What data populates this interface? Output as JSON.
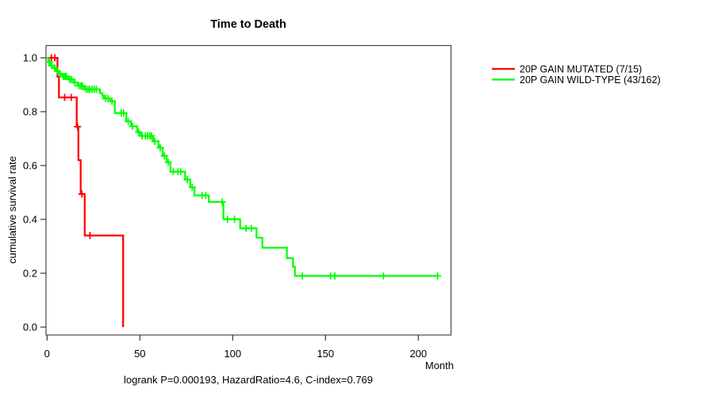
{
  "chart": {
    "title": "Time to Death",
    "x_axis_label": "Month",
    "y_axis_label": "cumulative survival rate",
    "footer": "logrank P=0.000193, HazardRatio=4.6, C-index=0.769"
  },
  "legend": {
    "items": [
      {
        "label": "20P GAIN MUTATED (7/15)",
        "color": "#ff0000"
      },
      {
        "label": "20P GAIN WILD-TYPE (43/162)",
        "color": "#00ff00"
      }
    ]
  },
  "chart_data": {
    "type": "line",
    "subtype": "kaplan-meier-step",
    "title": "Time to Death",
    "xlabel": "Month",
    "ylabel": "cumulative survival rate",
    "xlim": [
      0,
      217
    ],
    "ylim": [
      0,
      1
    ],
    "grid": false,
    "legend_position": "right-outside",
    "x_ticks": {
      "values": [
        0,
        50,
        100,
        150,
        200
      ],
      "labels": [
        "0",
        "50",
        "100",
        "150",
        "200"
      ]
    },
    "y_ticks": {
      "values": [
        0.0,
        0.2,
        0.4,
        0.6,
        0.8,
        1.0
      ],
      "labels": [
        "0.0",
        "0.2",
        "0.4",
        "0.6",
        "0.8",
        "1.0"
      ]
    },
    "annotation": "logrank P=0.000193, HazardRatio=4.6, C-index=0.769",
    "series": [
      {
        "name": "20P GAIN MUTATED (7/15)",
        "color": "#ff0000",
        "events": [
          [
            0,
            1.0
          ],
          [
            5.6,
            0.93
          ],
          [
            6.4,
            0.853
          ],
          [
            16,
            0.744
          ],
          [
            16.9,
            0.62
          ],
          [
            18.1,
            0.494
          ],
          [
            20.3,
            0.34
          ],
          [
            41,
            0.0
          ]
        ],
        "end_month": 41,
        "censors": [
          [
            2.3,
            1.0
          ],
          [
            4.2,
            1.0
          ],
          [
            9.5,
            0.853
          ],
          [
            13,
            0.853
          ],
          [
            16.4,
            0.744
          ],
          [
            18.8,
            0.494
          ],
          [
            23.1,
            0.34
          ]
        ]
      },
      {
        "name": "20P GAIN WILD-TYPE (43/162)",
        "color": "#00ff00",
        "events": [
          [
            0,
            1.0
          ],
          [
            0.7,
            0.985
          ],
          [
            2,
            0.971
          ],
          [
            3.7,
            0.962
          ],
          [
            5,
            0.951
          ],
          [
            6.3,
            0.941
          ],
          [
            8,
            0.931
          ],
          [
            11.4,
            0.92
          ],
          [
            14.3,
            0.908
          ],
          [
            16.5,
            0.896
          ],
          [
            20,
            0.883
          ],
          [
            28.5,
            0.869
          ],
          [
            29.8,
            0.859
          ],
          [
            30.6,
            0.849
          ],
          [
            34,
            0.839
          ],
          [
            36.5,
            0.795
          ],
          [
            42.7,
            0.764
          ],
          [
            45.2,
            0.746
          ],
          [
            48.6,
            0.724
          ],
          [
            50.3,
            0.71
          ],
          [
            57.1,
            0.69
          ],
          [
            60.1,
            0.666
          ],
          [
            62.3,
            0.636
          ],
          [
            64.4,
            0.612
          ],
          [
            66.5,
            0.577
          ],
          [
            74.4,
            0.548
          ],
          [
            77.2,
            0.519
          ],
          [
            79.4,
            0.489
          ],
          [
            87.2,
            0.465
          ],
          [
            95,
            0.401
          ],
          [
            104,
            0.367
          ],
          [
            112.8,
            0.332
          ],
          [
            116,
            0.295
          ],
          [
            129.2,
            0.256
          ],
          [
            132.5,
            0.224
          ],
          [
            133.5,
            0.19
          ]
        ],
        "end_month": 210.5,
        "censors": [
          [
            1.2,
            0.985
          ],
          [
            2.5,
            0.971
          ],
          [
            4.2,
            0.962
          ],
          [
            5.5,
            0.951
          ],
          [
            7,
            0.941
          ],
          [
            8.8,
            0.931
          ],
          [
            9.6,
            0.931
          ],
          [
            10.4,
            0.931
          ],
          [
            12.2,
            0.92
          ],
          [
            13.2,
            0.92
          ],
          [
            15,
            0.908
          ],
          [
            17.2,
            0.896
          ],
          [
            18.2,
            0.896
          ],
          [
            19,
            0.896
          ],
          [
            21,
            0.883
          ],
          [
            22,
            0.883
          ],
          [
            23,
            0.883
          ],
          [
            24.2,
            0.883
          ],
          [
            25.4,
            0.883
          ],
          [
            26.6,
            0.883
          ],
          [
            31.5,
            0.849
          ],
          [
            32.8,
            0.849
          ],
          [
            35,
            0.839
          ],
          [
            40,
            0.795
          ],
          [
            41.3,
            0.795
          ],
          [
            43.7,
            0.764
          ],
          [
            46,
            0.746
          ],
          [
            49.3,
            0.724
          ],
          [
            51.2,
            0.71
          ],
          [
            53,
            0.71
          ],
          [
            54.2,
            0.71
          ],
          [
            55.4,
            0.71
          ],
          [
            56.2,
            0.71
          ],
          [
            58,
            0.69
          ],
          [
            61,
            0.666
          ],
          [
            63.2,
            0.636
          ],
          [
            65.3,
            0.612
          ],
          [
            68,
            0.577
          ],
          [
            70.5,
            0.577
          ],
          [
            72,
            0.577
          ],
          [
            75.5,
            0.548
          ],
          [
            78.2,
            0.519
          ],
          [
            83.5,
            0.489
          ],
          [
            85.5,
            0.489
          ],
          [
            94.3,
            0.465
          ],
          [
            97.2,
            0.401
          ],
          [
            101,
            0.401
          ],
          [
            107.2,
            0.367
          ],
          [
            110,
            0.367
          ],
          [
            137.5,
            0.19
          ],
          [
            152.7,
            0.19
          ],
          [
            155,
            0.19
          ],
          [
            181.2,
            0.19
          ],
          [
            210.4,
            0.19
          ]
        ]
      }
    ]
  }
}
